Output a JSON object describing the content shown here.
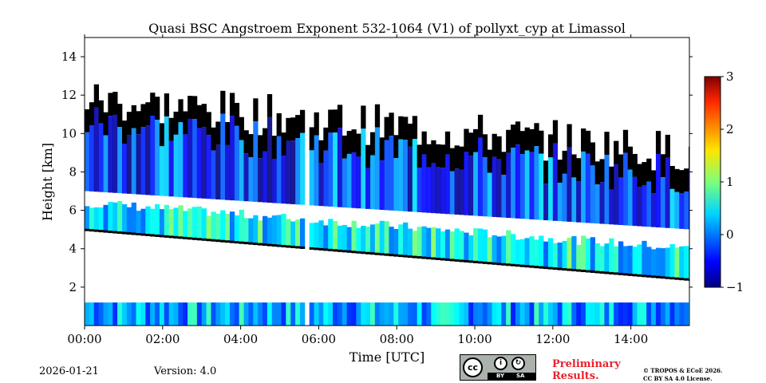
{
  "chart_data": {
    "type": "heatmap",
    "title": "Quasi BSC Angstroem Exponent 532-1064 (V1) of pollyxt_cyp at Limassol",
    "xlabel": "Time [UTC]",
    "ylabel": "Height [km]",
    "xlim": [
      0,
      15.5
    ],
    "ylim": [
      0,
      15
    ],
    "x_ticks": [
      0,
      2,
      4,
      6,
      8,
      10,
      12,
      14
    ],
    "x_tick_labels": [
      "00:00",
      "02:00",
      "04:00",
      "06:00",
      "08:00",
      "10:00",
      "12:00",
      "14:00"
    ],
    "y_ticks": [
      2,
      4,
      6,
      8,
      10,
      12,
      14
    ],
    "y_tick_labels": [
      "2",
      "4",
      "6",
      "8",
      "10",
      "12",
      "14"
    ],
    "colorbar": {
      "range": [
        -1,
        3
      ],
      "ticks": [
        -1,
        0,
        1,
        2,
        3
      ],
      "tick_labels": [
        "−1",
        "0",
        "1",
        "2",
        "3"
      ],
      "colormap": "jet"
    },
    "data_gaps_utc": [
      [
        5.6,
        5.72
      ]
    ],
    "layers": [
      {
        "name": "boundary layer",
        "time_range": [
          0,
          15.5
        ],
        "bottom_km": 0.0,
        "top_start_km": 1.2,
        "top_end_km": 1.2,
        "typical_value": 0.2
      },
      {
        "name": "lofted aerosol layer",
        "time_range": [
          0,
          15.5
        ],
        "bottom_start_km": 5.0,
        "bottom_end_km": 2.4,
        "top_start_km": 6.4,
        "top_end_km": 4.0,
        "typical_value": 0.5
      },
      {
        "name": "cirrus / upper layer",
        "time_range": [
          0,
          15.5
        ],
        "bottom_start_km": 7.0,
        "bottom_end_km": 5.0,
        "top_start_km": 11.8,
        "top_end_km": 9.0,
        "typical_value": -0.3
      }
    ]
  },
  "footer": {
    "date": "2026-01-21",
    "version": "Version: 4.0",
    "preliminary": [
      "Preliminary",
      "Results."
    ],
    "copyright": [
      "© TROPOS & ECoE 2026.",
      "CC BY SA 4.0 License."
    ],
    "license_badge": {
      "circle": "cc",
      "tags": [
        "BY",
        "SA"
      ]
    }
  },
  "colors": {
    "nodata": "#ffffff",
    "cloud_mask": "#000000",
    "licence_red": "#e8232d"
  }
}
